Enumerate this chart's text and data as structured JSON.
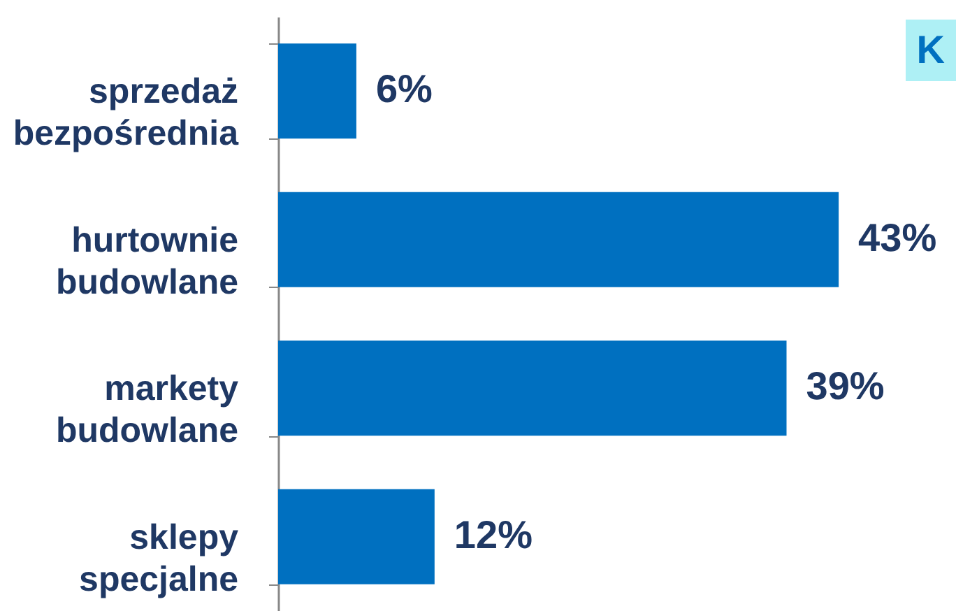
{
  "chart_data": {
    "type": "bar",
    "orientation": "horizontal",
    "categories": [
      "sprzedaż bezpośrednia",
      "hurtownie budowlane",
      "markety budowlane",
      "sklepy specjalne"
    ],
    "values": [
      6,
      43,
      39,
      12
    ],
    "value_labels": [
      "6%",
      "43%",
      "39%",
      "12%"
    ],
    "color": "#0070c0",
    "xlim": [
      0,
      52
    ],
    "tick_labels": "y",
    "annotations": [
      "K"
    ]
  }
}
